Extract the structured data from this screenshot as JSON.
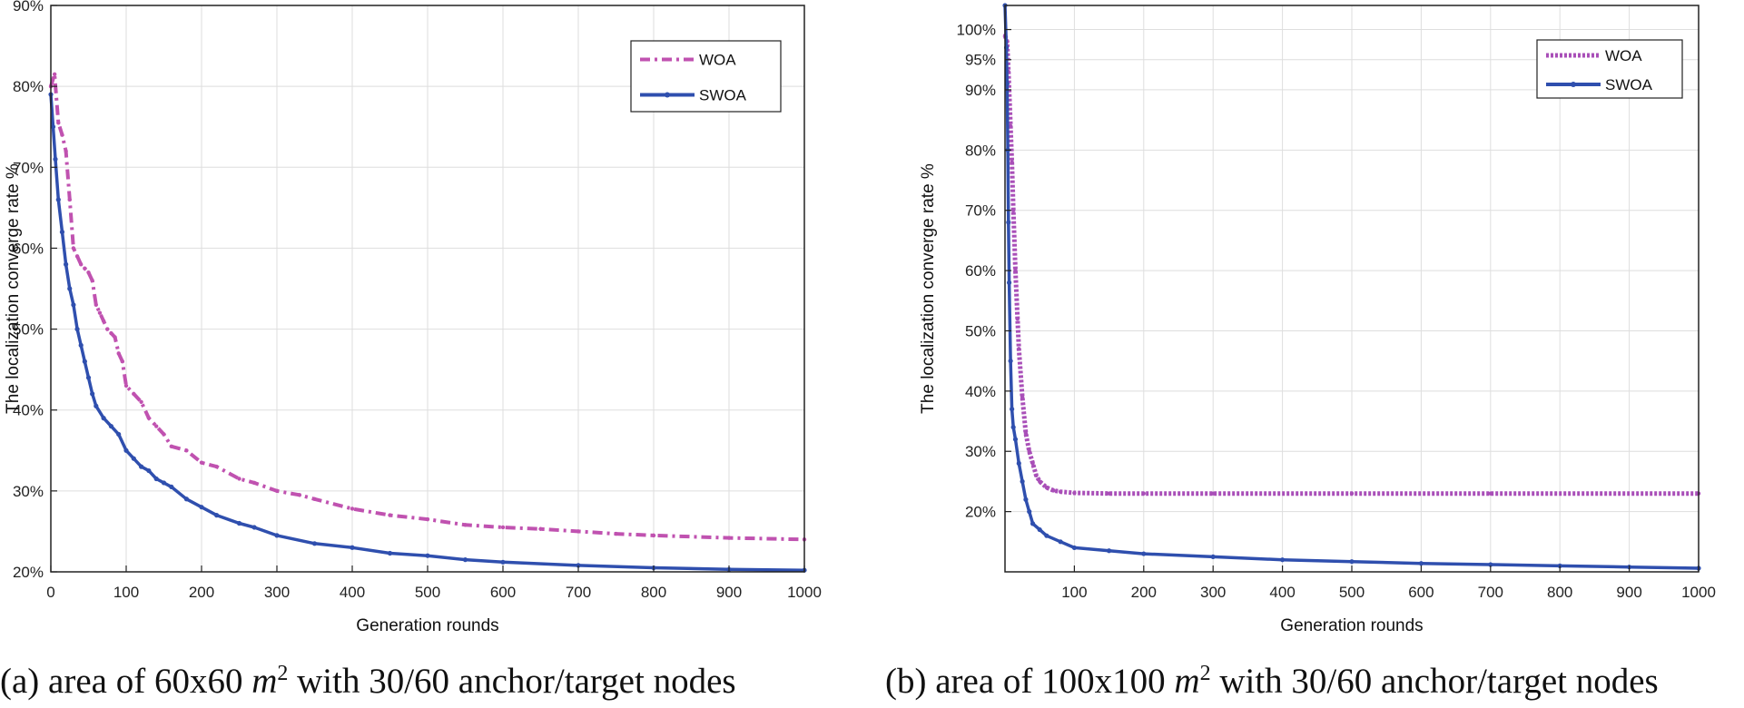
{
  "colors": {
    "woa_a": "#c052b0",
    "woa_b": "#a94fb8",
    "swoa": "#2f4fae",
    "grid": "#dedede",
    "axis": "#222222"
  },
  "chart_data": [
    {
      "type": "line",
      "title": "",
      "xlabel": "Generation rounds",
      "ylabel": "The localization converge rate %",
      "xlim": [
        0,
        1000
      ],
      "ylim": [
        20,
        90
      ],
      "xticks": [
        0,
        100,
        200,
        300,
        400,
        500,
        600,
        700,
        800,
        900,
        1000
      ],
      "xtick_labels": [
        "0",
        "100",
        "200",
        "300",
        "400",
        "500",
        "600",
        "700",
        "800",
        "900",
        "1000"
      ],
      "yticks": [
        20,
        30,
        40,
        50,
        60,
        70,
        80,
        90
      ],
      "ytick_labels": [
        "20%",
        "30%",
        "40%",
        "50%",
        "60%",
        "70%",
        "80%",
        "90%"
      ],
      "grid": true,
      "legend_position": "top-right",
      "series": [
        {
          "name": "WOA",
          "style": "dashed",
          "color": "#c052b0",
          "x": [
            0,
            5,
            10,
            15,
            20,
            25,
            30,
            35,
            40,
            45,
            50,
            55,
            60,
            65,
            70,
            75,
            80,
            85,
            90,
            95,
            100,
            110,
            120,
            130,
            140,
            150,
            160,
            180,
            200,
            220,
            250,
            270,
            300,
            330,
            350,
            400,
            450,
            500,
            550,
            600,
            650,
            700,
            750,
            800,
            900,
            1000
          ],
          "y": [
            80,
            81.5,
            75.5,
            74,
            72,
            66,
            60,
            59,
            58,
            57.5,
            57,
            56,
            53,
            52,
            51,
            50,
            49.5,
            49,
            47,
            46,
            43,
            42,
            41,
            39,
            38,
            37,
            35.5,
            35,
            33.5,
            33,
            31.5,
            31,
            30,
            29.5,
            29,
            27.8,
            27,
            26.5,
            25.8,
            25.5,
            25.3,
            25,
            24.7,
            24.5,
            24.2,
            24
          ]
        },
        {
          "name": "SWOA",
          "style": "solid-marker",
          "color": "#2f4fae",
          "x": [
            0,
            3,
            6,
            10,
            15,
            20,
            25,
            30,
            35,
            40,
            45,
            50,
            55,
            60,
            70,
            80,
            90,
            100,
            110,
            120,
            130,
            140,
            150,
            160,
            180,
            200,
            220,
            250,
            270,
            300,
            350,
            400,
            450,
            500,
            550,
            600,
            700,
            800,
            900,
            1000
          ],
          "y": [
            79,
            75,
            71,
            66,
            62,
            58,
            55,
            53,
            50,
            48,
            46,
            44,
            42,
            40.5,
            39,
            38,
            37,
            35,
            34,
            33,
            32.5,
            31.5,
            31,
            30.5,
            29,
            28,
            27,
            26,
            25.5,
            24.5,
            23.5,
            23,
            22.3,
            22,
            21.5,
            21.2,
            20.8,
            20.5,
            20.3,
            20.2
          ]
        }
      ],
      "caption": {
        "label": "(a) area of 60x60",
        "unit": "m",
        "exp": "2",
        "tail": "with 30/60 anchor/target nodes"
      }
    },
    {
      "type": "line",
      "title": "",
      "xlabel": "Generation rounds",
      "ylabel": "The localization converge rate %",
      "xlim": [
        0,
        1000
      ],
      "ylim": [
        10,
        104
      ],
      "xticks": [
        100,
        200,
        300,
        400,
        500,
        600,
        700,
        800,
        900,
        1000
      ],
      "xtick_labels": [
        "100",
        "200",
        "300",
        "400",
        "500",
        "600",
        "700",
        "800",
        "900",
        "1000"
      ],
      "yticks": [
        20,
        30,
        40,
        50,
        60,
        70,
        80,
        90,
        95,
        100
      ],
      "ytick_labels": [
        "20%",
        "30%",
        "40%",
        "50%",
        "60%",
        "70%",
        "80%",
        "90%",
        "95%",
        "100%"
      ],
      "grid": true,
      "legend_position": "top-right",
      "series": [
        {
          "name": "WOA",
          "style": "dotted",
          "color": "#a94fb8",
          "x": [
            0,
            3,
            5,
            8,
            10,
            12,
            15,
            18,
            20,
            25,
            30,
            35,
            40,
            45,
            50,
            60,
            70,
            80,
            100,
            150,
            200,
            300,
            500,
            700,
            1000
          ],
          "y": [
            99,
            98,
            93,
            84,
            78,
            70,
            60,
            52,
            47,
            39,
            33,
            30,
            28,
            26,
            25,
            24,
            23.5,
            23.3,
            23.1,
            23,
            23,
            23,
            23,
            23,
            23
          ]
        },
        {
          "name": "SWOA",
          "style": "solid-marker",
          "color": "#2f4fae",
          "x": [
            0,
            2,
            3,
            4,
            5,
            6,
            8,
            10,
            12,
            15,
            20,
            25,
            30,
            35,
            40,
            50,
            60,
            80,
            100,
            150,
            200,
            300,
            400,
            500,
            600,
            700,
            800,
            900,
            1000
          ],
          "y": [
            104,
            97,
            91,
            80,
            68,
            58,
            45,
            37,
            34,
            32,
            28,
            25,
            22,
            20,
            18,
            17,
            16,
            15,
            14,
            13.5,
            13,
            12.5,
            12,
            11.7,
            11.4,
            11.2,
            11,
            10.8,
            10.6
          ]
        }
      ],
      "caption": {
        "label": "(b) area of 100x100",
        "unit": "m",
        "exp": "2",
        "tail": "with 30/60 anchor/target nodes"
      }
    }
  ]
}
